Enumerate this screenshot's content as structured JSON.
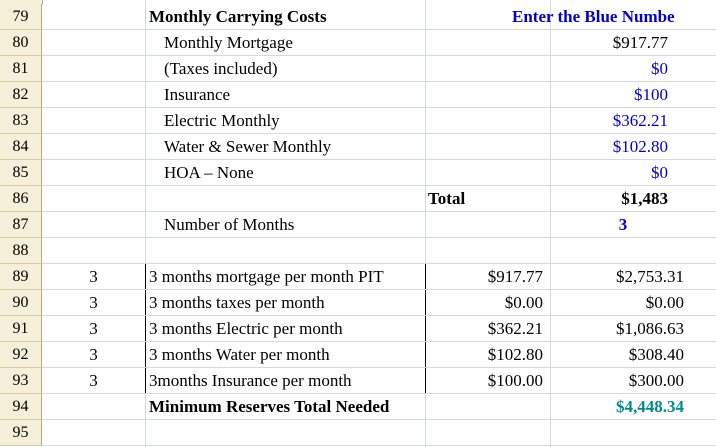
{
  "rows": [
    {
      "num": "79",
      "c": "Monthly Carrying Costs",
      "e": "Enter the Blue Numbe"
    },
    {
      "num": "80",
      "c": "Monthly Mortgage",
      "e": "$917.77"
    },
    {
      "num": "81",
      "c": "(Taxes included)",
      "e": "$0"
    },
    {
      "num": "82",
      "c": "Insurance",
      "e": "$100"
    },
    {
      "num": "83",
      "c": "Electric Monthly",
      "e": "$362.21"
    },
    {
      "num": "84",
      "c": "Water & Sewer Monthly",
      "e": "$102.80"
    },
    {
      "num": "85",
      "c": "HOA – None",
      "e": "$0"
    },
    {
      "num": "86",
      "d": "Total",
      "e": "$1,483"
    },
    {
      "num": "87",
      "c": "Number of Months",
      "e": "3"
    },
    {
      "num": "88"
    },
    {
      "num": "89",
      "b": "3",
      "c": "3 months mortgage per month PIT",
      "d": "$917.77",
      "e": "$2,753.31"
    },
    {
      "num": "90",
      "b": "3",
      "c": "3 months taxes per month",
      "d": "$0.00",
      "e": "$0.00"
    },
    {
      "num": "91",
      "b": "3",
      "c": "3 months Electric per month",
      "d": "$362.21",
      "e": "$1,086.63"
    },
    {
      "num": "92",
      "b": "3",
      "c": "3 months Water per month",
      "d": "$102.80",
      "e": "$308.40"
    },
    {
      "num": "93",
      "b": "3",
      "c": "3months Insurance per month",
      "d": "$100.00",
      "e": "$300.00"
    },
    {
      "num": "94",
      "c": "Minimum Reserves Total Needed",
      "e": "$4,448.34"
    },
    {
      "num": "95"
    }
  ]
}
